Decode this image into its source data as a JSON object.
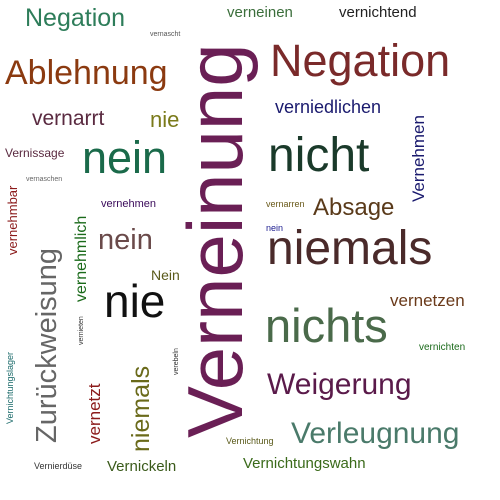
{
  "words": [
    {
      "id": "negation-1",
      "text": "Negation",
      "color": "#2e7d5a"
    },
    {
      "id": "verneinen",
      "text": "verneinen",
      "color": "#3b6e3b"
    },
    {
      "id": "vernichtend",
      "text": "vernichtend",
      "color": "#222222"
    },
    {
      "id": "vernascht",
      "text": "vernascht",
      "color": "#555555"
    },
    {
      "id": "negation-2",
      "text": "Negation",
      "color": "#7a2a2a"
    },
    {
      "id": "ablehnung",
      "text": "Ablehnung",
      "color": "#8b3a10"
    },
    {
      "id": "verneinung",
      "text": "Verneinung",
      "color": "#6a1f55"
    },
    {
      "id": "verniedlichen",
      "text": "verniedlichen",
      "color": "#1a1a6e"
    },
    {
      "id": "vernarrt",
      "text": "vernarrt",
      "color": "#5a2a40"
    },
    {
      "id": "nie-small",
      "text": "nie",
      "color": "#7a7a1a"
    },
    {
      "id": "vernehmen-vertical",
      "text": "Vernehmen",
      "color": "#1a1a6e"
    },
    {
      "id": "vernissage",
      "text": "Vernissage",
      "color": "#5a2a40"
    },
    {
      "id": "nein-large",
      "text": "nein",
      "color": "#1a6a4a"
    },
    {
      "id": "nicht",
      "text": "nicht",
      "color": "#1a3a2a"
    },
    {
      "id": "vernaschen",
      "text": "vernaschen",
      "color": "#666666"
    },
    {
      "id": "vernehmbar",
      "text": "vernehmbar",
      "color": "#8b1a1a"
    },
    {
      "id": "zurueckweisung",
      "text": "Zurückweisung",
      "color": "#666666"
    },
    {
      "id": "vernehmlich",
      "text": "vernehmlich",
      "color": "#1a6a1a"
    },
    {
      "id": "vernehmen",
      "text": "vernehmen",
      "color": "#3a0a5a"
    },
    {
      "id": "vernarren",
      "text": "vernarren",
      "color": "#6a5a1a"
    },
    {
      "id": "absage",
      "text": "Absage",
      "color": "#5a3a1a"
    },
    {
      "id": "nein-small",
      "text": "nein",
      "color": "#1a1a8e"
    },
    {
      "id": "nein-medium",
      "text": "nein",
      "color": "#6a4a4a"
    },
    {
      "id": "niemals-large",
      "text": "niemals",
      "color": "#4a2a2a"
    },
    {
      "id": "nein-capital",
      "text": "Nein",
      "color": "#5a5a1a"
    },
    {
      "id": "nie-large",
      "text": "nie",
      "color": "#111111"
    },
    {
      "id": "vernetzen",
      "text": "vernetzen",
      "color": "#6a3a1a"
    },
    {
      "id": "vernieten",
      "text": "vernieten",
      "color": "#333333"
    },
    {
      "id": "nichts",
      "text": "nichts",
      "color": "#4a6a4a"
    },
    {
      "id": "vernichten",
      "text": "vernichten",
      "color": "#1a6a1a"
    },
    {
      "id": "vernichtungslager",
      "text": "Vernichtungslager",
      "color": "#1a6a6a"
    },
    {
      "id": "verzetzt",
      "text": "vernetzt",
      "color": "#8b1a1a"
    },
    {
      "id": "niemals-vertical",
      "text": "niemals",
      "color": "#6a6a1a"
    },
    {
      "id": "verebeln",
      "text": "verebeln",
      "color": "#333333"
    },
    {
      "id": "weigerung",
      "text": "Weigerung",
      "color": "#5a1a4a"
    },
    {
      "id": "verleugnung",
      "text": "Verleugnung",
      "color": "#4a7a6a"
    },
    {
      "id": "vernichtung",
      "text": "Vernichtung",
      "color": "#5a5a1a"
    },
    {
      "id": "vernierduese",
      "text": "Vernierdüse",
      "color": "#333333"
    },
    {
      "id": "vernickeln",
      "text": "Vernickeln",
      "color": "#3a5a1a"
    },
    {
      "id": "vernichtungswahn",
      "text": "Vernichtungswahn",
      "color": "#3a6a1a"
    }
  ]
}
